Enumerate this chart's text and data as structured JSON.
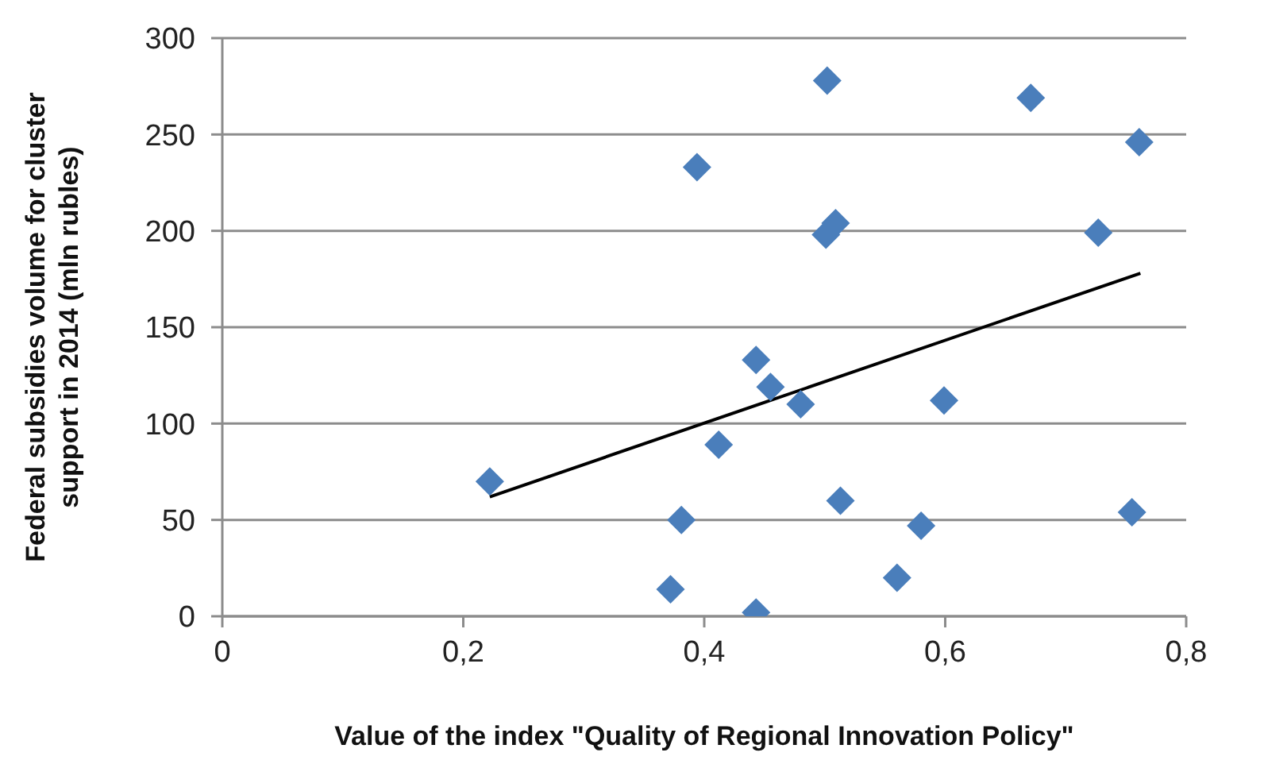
{
  "chart_data": {
    "type": "scatter",
    "xlabel": "Value of the index \"Quality of Regional Innovation Policy\"",
    "ylabel": "Federal subsidies volume for cluster support in 2014  (mln rubles)",
    "series": [
      {
        "color": "#4a7ebb",
        "marker": "diamond",
        "x": [
          0.222,
          0.394,
          0.412,
          0.381,
          0.372,
          0.502,
          0.671,
          0.761,
          0.509,
          0.501,
          0.727,
          0.443,
          0.455,
          0.48,
          0.599,
          0.513,
          0.58,
          0.755,
          0.56,
          0.443
        ],
        "values": [
          70,
          233,
          89,
          50,
          14,
          278,
          269,
          246,
          204,
          198,
          199,
          133,
          119,
          110,
          112,
          60,
          47,
          54,
          20,
          2
        ]
      },
      {
        "type": "line",
        "color": "#000000",
        "marker": "none",
        "x": [
          0.222,
          0.762
        ],
        "values": [
          62,
          178
        ]
      }
    ],
    "xlim": [
      0,
      0.8
    ],
    "xticks": [
      0,
      {
        "value": 0.2,
        "label": "0,2"
      },
      {
        "value": 0.4,
        "label": "0,4"
      },
      {
        "value": 0.6,
        "label": "0,6"
      },
      {
        "value": 0.8,
        "label": "0,8"
      }
    ],
    "ylim": [
      0,
      300
    ],
    "yticks": [
      0,
      50,
      100,
      150,
      200,
      250,
      300
    ],
    "grid": "y"
  }
}
